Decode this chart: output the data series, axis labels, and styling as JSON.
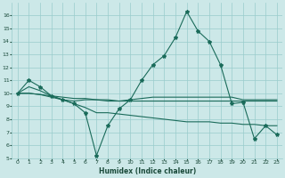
{
  "xlabel": "Humidex (Indice chaleur)",
  "ylabel": "",
  "background_color": "#cce8e8",
  "grid_color": "#99cccc",
  "line_color": "#1a6b5a",
  "xlim": [
    -0.5,
    23.5
  ],
  "ylim": [
    5,
    17
  ],
  "yticks": [
    5,
    6,
    7,
    8,
    9,
    10,
    11,
    12,
    13,
    14,
    15,
    16
  ],
  "xticks": [
    0,
    1,
    2,
    3,
    4,
    5,
    6,
    7,
    8,
    9,
    10,
    11,
    12,
    13,
    14,
    15,
    16,
    17,
    18,
    19,
    20,
    21,
    22,
    23
  ],
  "series1": [
    10,
    11,
    10.5,
    9.8,
    9.5,
    9.2,
    8.5,
    5.2,
    7.5,
    8.8,
    9.5,
    11.0,
    12.2,
    12.9,
    14.3,
    16.3,
    14.8,
    14.0,
    12.2,
    9.2,
    9.3,
    6.5,
    7.5,
    6.8
  ],
  "series2": [
    10,
    10,
    9.9,
    9.8,
    9.7,
    9.6,
    9.6,
    9.5,
    9.5,
    9.4,
    9.4,
    9.4,
    9.4,
    9.4,
    9.4,
    9.4,
    9.4,
    9.4,
    9.4,
    9.4,
    9.4,
    9.4,
    9.4,
    9.4
  ],
  "series3": [
    10,
    10,
    9.9,
    9.7,
    9.5,
    9.2,
    8.9,
    8.5,
    8.5,
    8.4,
    8.3,
    8.2,
    8.1,
    8.0,
    7.9,
    7.8,
    7.8,
    7.8,
    7.7,
    7.7,
    7.6,
    7.6,
    7.5,
    7.5
  ],
  "series4": [
    10,
    10.5,
    10.2,
    9.8,
    9.5,
    9.4,
    9.5,
    9.5,
    9.4,
    9.4,
    9.5,
    9.6,
    9.7,
    9.7,
    9.7,
    9.7,
    9.7,
    9.7,
    9.7,
    9.7,
    9.5,
    9.5,
    9.5,
    9.5
  ]
}
